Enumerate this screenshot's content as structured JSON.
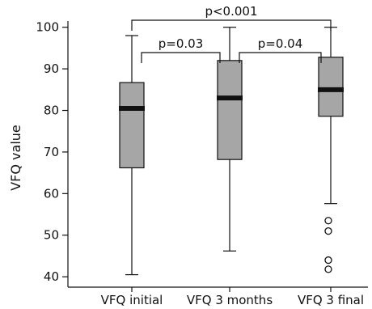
{
  "chart_data": {
    "type": "box",
    "ylabel": "VFQ value",
    "xlabel": "",
    "ylim": [
      37.5,
      105
    ],
    "yticks": [
      40,
      50,
      60,
      70,
      80,
      90,
      100
    ],
    "categories": [
      "VFQ initial",
      "VFQ 3 months",
      "VFQ 3 final"
    ],
    "boxes": [
      {
        "whisker_low": 40.5,
        "q1": 66.2,
        "median": 80.5,
        "q3": 86.7,
        "whisker_high": 98,
        "outliers": []
      },
      {
        "whisker_low": 46.2,
        "q1": 68.2,
        "median": 83,
        "q3": 92,
        "whisker_high": 100,
        "outliers": []
      },
      {
        "whisker_low": 57.6,
        "q1": 78.6,
        "median": 85,
        "q3": 92.8,
        "whisker_high": 100,
        "outliers": [
          53.5,
          51,
          44,
          41.8
        ]
      }
    ],
    "comparisons": [
      {
        "from": 0,
        "to": 2,
        "label": "p<0.001"
      },
      {
        "from": 0,
        "to": 1,
        "label": "p=0.03"
      },
      {
        "from": 1,
        "to": 2,
        "label": "p=0.04"
      }
    ],
    "colors": {
      "box_fill": "#a6a6a6",
      "line": "#111111",
      "median": "#111111"
    }
  }
}
